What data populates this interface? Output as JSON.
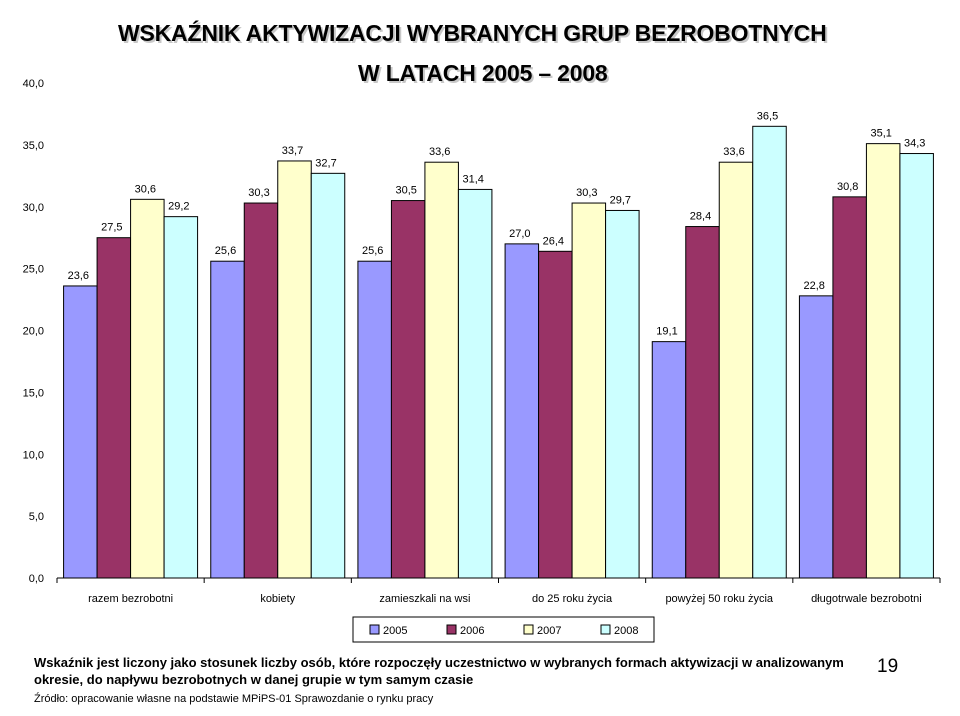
{
  "title_line1": "WSKAŹNIK AKTYWIZACJI WYBRANYCH GRUP BEZROBOTNYCH",
  "title_line2": "W LATACH 2005 – 2008",
  "footnote": "Wskaźnik jest liczony jako stosunek liczby osób, które rozpoczęły uczestnictwo w wybranych formach aktywizacji w analizowanym okresie, do napływu bezrobotnych w danej grupie w tym samym czasie",
  "source": "Źródło: opracowanie własne na podstawie MPiPS-01 Sprawozdanie o rynku pracy",
  "page_number": "19",
  "chart_data": {
    "type": "bar",
    "title": "",
    "xlabel": "",
    "ylabel": "",
    "ylim": [
      0,
      40
    ],
    "yticks": [
      "0,0",
      "5,0",
      "10,0",
      "15,0",
      "20,0",
      "25,0",
      "30,0",
      "35,0",
      "40,0"
    ],
    "grid": false,
    "legend_position": "bottom",
    "categories": [
      "razem bezrobotni",
      "kobiety",
      "zamieszkali na wsi",
      "do 25 roku życia",
      "powyżej 50 roku życia",
      "długotrwale bezrobotni"
    ],
    "series": [
      {
        "name": "2005",
        "color": "#9999ff",
        "values": [
          23.6,
          25.6,
          25.6,
          27.0,
          19.1,
          22.8
        ],
        "labels": [
          "23,6",
          "25,6",
          "25,6",
          "27,0",
          "19,1",
          "22,8"
        ]
      },
      {
        "name": "2006",
        "color": "#993366",
        "values": [
          27.5,
          30.3,
          30.5,
          26.4,
          28.4,
          30.8
        ],
        "labels": [
          "27,5",
          "30,3",
          "30,5",
          "26,4",
          "28,4",
          "30,8"
        ]
      },
      {
        "name": "2007",
        "color": "#ffffcc",
        "values": [
          30.6,
          33.7,
          33.6,
          30.3,
          33.6,
          35.1
        ],
        "labels": [
          "30,6",
          "33,7",
          "33,6",
          "30,3",
          "33,6",
          "35,1"
        ]
      },
      {
        "name": "2008",
        "color": "#ccffff",
        "values": [
          29.2,
          32.7,
          31.4,
          29.7,
          36.5,
          34.3
        ],
        "labels": [
          "29,2",
          "32,7",
          "31,4",
          "29,7",
          "36,5",
          "34,3"
        ]
      }
    ]
  }
}
